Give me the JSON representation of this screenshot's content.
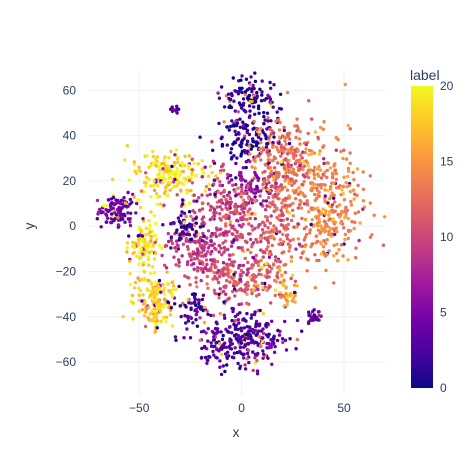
{
  "chart_data": {
    "type": "scatter",
    "xlabel": "x",
    "ylabel": "y",
    "xlim": [
      -75,
      70
    ],
    "ylim": [
      -75,
      69
    ],
    "xticks": [
      -50,
      0,
      50
    ],
    "yticks": [
      -60,
      -40,
      -20,
      0,
      20,
      40,
      60
    ],
    "grid": true,
    "colorbar": {
      "title": "label",
      "range": [
        0,
        20
      ],
      "ticks": [
        0,
        5,
        10,
        15,
        20
      ],
      "colorscale": [
        "#0d0887",
        "#46039f",
        "#7201a8",
        "#9c179e",
        "#bd3786",
        "#d8576b",
        "#ed7953",
        "#fb9f3a",
        "#fdca26",
        "#f0f921"
      ]
    },
    "series": [
      {
        "clusters": [
          {
            "cx": 5,
            "cy": 56,
            "rx": 13,
            "ry": 8,
            "label": 1,
            "n": 120
          },
          {
            "cx": 2,
            "cy": 38,
            "rx": 14,
            "ry": 10,
            "label": 1,
            "n": 130
          },
          {
            "cx": 2,
            "cy": 18,
            "rx": 14,
            "ry": 8,
            "label": 6,
            "n": 90
          },
          {
            "cx": -62,
            "cy": 7,
            "rx": 9,
            "ry": 7,
            "label": 4,
            "n": 110
          },
          {
            "cx": -35,
            "cy": 22,
            "rx": 18,
            "ry": 10,
            "label": 19,
            "n": 200
          },
          {
            "cx": -48,
            "cy": -8,
            "rx": 6,
            "ry": 10,
            "label": 19,
            "n": 110
          },
          {
            "cx": -43,
            "cy": -33,
            "rx": 9,
            "ry": 11,
            "label": 18,
            "n": 170
          },
          {
            "cx": 42,
            "cy": 10,
            "rx": 18,
            "ry": 25,
            "label": 14,
            "n": 330
          },
          {
            "cx": 22,
            "cy": 30,
            "rx": 14,
            "ry": 14,
            "label": 13,
            "n": 210
          },
          {
            "cx": -5,
            "cy": 5,
            "rx": 22,
            "ry": 15,
            "label": 10,
            "n": 260
          },
          {
            "cx": -2,
            "cy": -22,
            "rx": 22,
            "ry": 12,
            "label": 11,
            "n": 240
          },
          {
            "cx": 0,
            "cy": -50,
            "rx": 20,
            "ry": 11,
            "label": 3,
            "n": 300
          },
          {
            "cx": -24,
            "cy": -36,
            "rx": 8,
            "ry": 6,
            "label": 2,
            "n": 50
          },
          {
            "cx": 35,
            "cy": -40,
            "rx": 4,
            "ry": 3,
            "label": 3,
            "n": 25
          },
          {
            "cx": -33,
            "cy": 52,
            "rx": 2,
            "ry": 2,
            "label": 3,
            "n": 10
          },
          {
            "cx": 22,
            "cy": -29,
            "rx": 5,
            "ry": 6,
            "label": 16,
            "n": 40
          },
          {
            "cx": -22,
            "cy": -10,
            "rx": 14,
            "ry": 10,
            "label": 9,
            "n": 120
          },
          {
            "cx": -28,
            "cy": 0,
            "rx": 8,
            "ry": 8,
            "label": 2,
            "n": 60
          },
          {
            "cx": 18,
            "cy": 3,
            "rx": 10,
            "ry": 20,
            "label": 12,
            "n": 150
          }
        ]
      }
    ]
  }
}
